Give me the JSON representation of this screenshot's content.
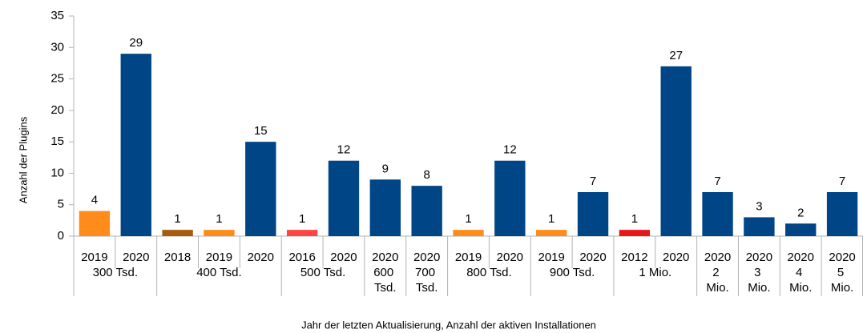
{
  "chart_data": {
    "type": "bar",
    "y_label": "Anzahl der Plugins",
    "x_label": "Jahr der letzten Aktualisierung, Anzahl der aktiven Installationen",
    "ylim": [
      0,
      35
    ],
    "yticks": [
      0,
      5,
      10,
      15,
      20,
      25,
      30,
      35
    ],
    "groups": [
      {
        "name": "300 Tsd.",
        "categories": [
          "2019",
          "2020"
        ],
        "values": [
          4,
          29
        ],
        "colors": [
          "#ff8c1a",
          "#004586"
        ]
      },
      {
        "name": "400 Tsd.",
        "categories": [
          "2018",
          "2019",
          "2020"
        ],
        "values": [
          1,
          1,
          15
        ],
        "colors": [
          "#a65c0a",
          "#ff8c1a",
          "#004586"
        ]
      },
      {
        "name": "500 Tsd.",
        "categories": [
          "2016",
          "2020"
        ],
        "values": [
          1,
          12
        ],
        "colors": [
          "#ff4444",
          "#004586"
        ]
      },
      {
        "name": "600 Tsd.",
        "categories": [
          "2020"
        ],
        "values": [
          9
        ],
        "colors": [
          "#004586"
        ]
      },
      {
        "name": "700 Tsd.",
        "categories": [
          "2020"
        ],
        "values": [
          8
        ],
        "colors": [
          "#004586"
        ]
      },
      {
        "name": "800 Tsd.",
        "categories": [
          "2019",
          "2020"
        ],
        "values": [
          1,
          12
        ],
        "colors": [
          "#ff8c1a",
          "#004586"
        ]
      },
      {
        "name": "900 Tsd.",
        "categories": [
          "2019",
          "2020"
        ],
        "values": [
          1,
          7
        ],
        "colors": [
          "#ff8c1a",
          "#004586"
        ]
      },
      {
        "name": "1 Mio.",
        "categories": [
          "2012",
          "2020"
        ],
        "values": [
          1,
          27
        ],
        "colors": [
          "#e8161b",
          "#004586"
        ]
      },
      {
        "name": "2 Mio.",
        "categories": [
          "2020"
        ],
        "values": [
          7
        ],
        "colors": [
          "#004586"
        ]
      },
      {
        "name": "3 Mio.",
        "categories": [
          "2020"
        ],
        "values": [
          3
        ],
        "colors": [
          "#004586"
        ]
      },
      {
        "name": "4 Mio.",
        "categories": [
          "2020"
        ],
        "values": [
          2
        ],
        "colors": [
          "#004586"
        ]
      },
      {
        "name": "5 Mio.",
        "categories": [
          "2020"
        ],
        "values": [
          7
        ],
        "colors": [
          "#004586"
        ]
      }
    ]
  }
}
